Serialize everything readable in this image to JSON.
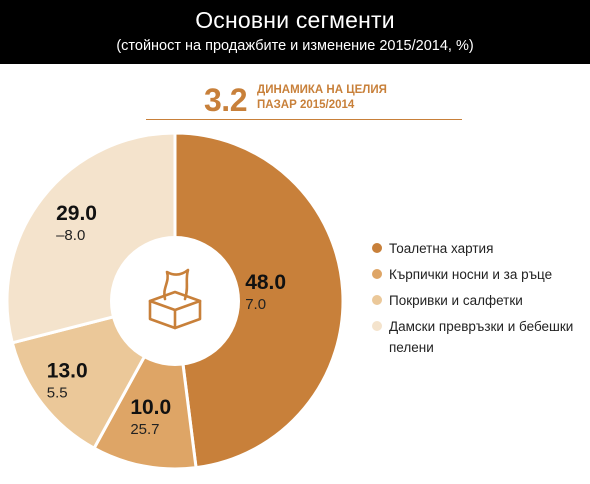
{
  "header": {
    "title": "Основни сегменти",
    "subtitle": "(стойност на продажбите и изменение 2015/2014, %)"
  },
  "badge": {
    "number": "3.2",
    "text": "ДИНАМИКА НА ЦЕЛИЯ ПАЗАР 2015/2014"
  },
  "colors": {
    "accent": "#c8803a",
    "header_bg": "#000000"
  },
  "icon": "tissue-box-icon",
  "chart_data": {
    "type": "pie",
    "title": "Основни сегменти",
    "subtitle": "(стойност на продажбите и изменение 2015/2014, %)",
    "legend_position": "right",
    "categories": [
      "Тоалетна хартия",
      "Кърпички носни и за  ръце",
      "Покривки и салфетки",
      "Дамски превръзки и бебешки пелени"
    ],
    "values": [
      48.0,
      10.0,
      13.0,
      29.0
    ],
    "value_labels": [
      "48.0",
      "10.0",
      "13.0",
      "29.0"
    ],
    "changes": [
      "7.0",
      "25.7",
      "5.5",
      "–8.0"
    ],
    "colors": [
      "#c8803a",
      "#dea566",
      "#ebc899",
      "#f4e3cc"
    ]
  }
}
